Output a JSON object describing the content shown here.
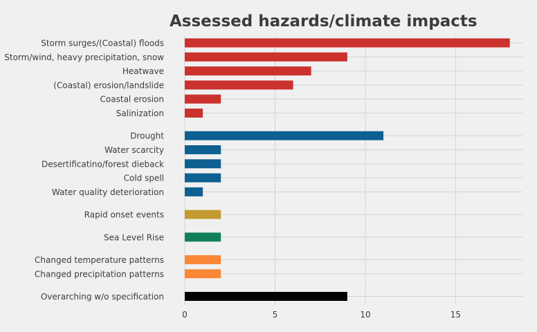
{
  "chart_data": {
    "type": "bar",
    "orientation": "horizontal",
    "title": "Assessed hazards/climate impacts",
    "xlabel": "",
    "ylabel": "",
    "xlim": [
      0,
      18.7
    ],
    "xticks": [
      0,
      5,
      10,
      15
    ],
    "grid": true,
    "legend": "none",
    "groups": [
      {
        "color": "#cb312d",
        "categories": [
          "Storm surges/(Coastal) floods",
          "Storm/wind, heavy precipitation, snow",
          "Heatwave",
          "(Coastal) erosion/landslide",
          "Coastal erosion",
          "Salinization"
        ],
        "values": [
          18,
          9,
          7,
          6,
          2,
          1
        ]
      },
      {
        "color": "#0d6091",
        "categories": [
          "Drought",
          "Water scarcity",
          "Desertificatino/forest dieback",
          "Cold spell",
          "Water quality deterioration"
        ],
        "values": [
          11,
          2,
          2,
          2,
          1
        ]
      },
      {
        "color": "#c49b31",
        "categories": [
          "Rapid onset events"
        ],
        "values": [
          2
        ]
      },
      {
        "color": "#10805a",
        "categories": [
          "Sea Level Rise"
        ],
        "values": [
          2
        ]
      },
      {
        "color": "#fb8837",
        "categories": [
          "Changed temperature patterns",
          "Changed precipitation patterns"
        ],
        "values": [
          2,
          2
        ]
      },
      {
        "color": "#000000",
        "categories": [
          "Overarching w/o specification"
        ],
        "values": [
          9
        ]
      }
    ]
  }
}
